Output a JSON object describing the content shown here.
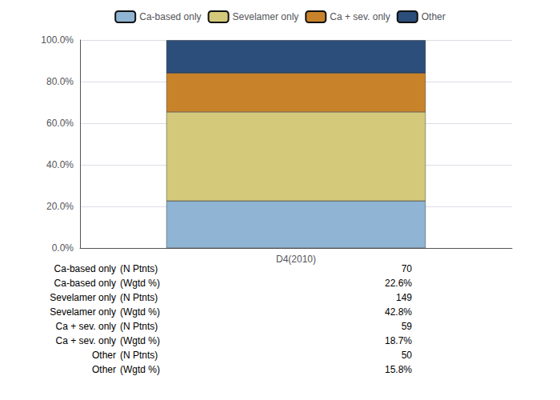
{
  "chart_data": {
    "type": "bar",
    "categories": [
      "D4(2010)"
    ],
    "series": [
      {
        "name": "Ca-based only",
        "color": "#8fb4d4",
        "values": [
          22.6
        ]
      },
      {
        "name": "Sevelamer only",
        "color": "#d4c97a",
        "values": [
          42.8
        ]
      },
      {
        "name": "Ca + sev. only",
        "color": "#c8832a",
        "values": [
          18.7
        ]
      },
      {
        "name": "Other",
        "color": "#2c4e7a",
        "values": [
          15.8
        ]
      }
    ],
    "stacked": true,
    "ylim": [
      0,
      100
    ],
    "yticks": [
      {
        "value": 0,
        "label": "0.0%"
      },
      {
        "value": 20,
        "label": "20.0%"
      },
      {
        "value": 40,
        "label": "40.0%"
      },
      {
        "value": 60,
        "label": "60.0%"
      },
      {
        "value": 80,
        "label": "80.0%"
      },
      {
        "value": 100,
        "label": "100.0%"
      }
    ],
    "grid": true,
    "legend": "top",
    "table": [
      {
        "label": "Ca-based only",
        "measure": "(N Ptnts)",
        "value": "70"
      },
      {
        "label": "Ca-based only",
        "measure": "(Wgtd %)",
        "value": "22.6%"
      },
      {
        "label": "Sevelamer only",
        "measure": "(N Ptnts)",
        "value": "149"
      },
      {
        "label": "Sevelamer only",
        "measure": "(Wgtd %)",
        "value": "42.8%"
      },
      {
        "label": "Ca + sev. only",
        "measure": "(N Ptnts)",
        "value": "59"
      },
      {
        "label": "Ca + sev. only",
        "measure": "(Wgtd %)",
        "value": "18.7%"
      },
      {
        "label": "Other",
        "measure": "(N Ptnts)",
        "value": "50"
      },
      {
        "label": "Other",
        "measure": "(Wgtd %)",
        "value": "15.8%"
      }
    ]
  }
}
